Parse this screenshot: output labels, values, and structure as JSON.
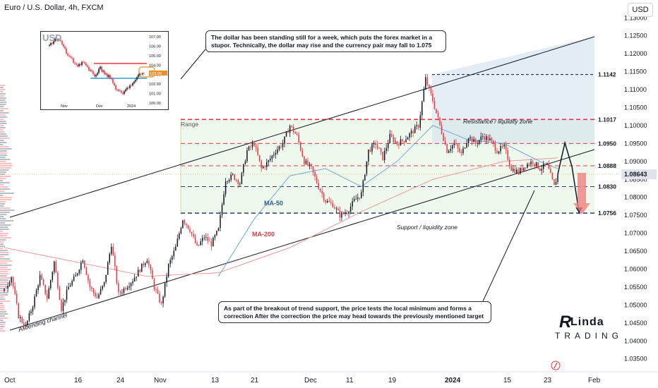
{
  "header": {
    "title": "Euro / U.S. Dollar, 4h, FXCM",
    "currency_button": "USD"
  },
  "notes": {
    "top": "The dollar has been standing still for a week, which puts the forex market in a stupor. Technically, the dollar may rise and the currency pair may fall to 1.075",
    "bottom": "As part of the breakout of trend support, the price tests the local minimum and forms a correction After the correction the price may head towards the previously mentioned target"
  },
  "inset": {
    "title": "USD",
    "y_ticks": [
      "107.00",
      "106.00",
      "105.00",
      "104.00",
      "103.00",
      "102.00",
      "101.00",
      "100.00"
    ],
    "x_ticks": [
      "Nov",
      "Dec",
      "2024"
    ],
    "current_label": "103.09"
  },
  "logo": {
    "mark": "R",
    "top": "Linda",
    "bottom": "TRADING"
  },
  "colors": {
    "up": "#131722",
    "down": "#ef3340",
    "ma50": "#6fa8dc",
    "ma200": "#e89a96",
    "channel": "#131722",
    "resistance": "#ef3340",
    "support": "#2c3e6b",
    "current_price_bg": "#e0e3eb"
  },
  "chart_data": {
    "type": "candlestick",
    "symbol": "EURUSD",
    "timeframe": "4h",
    "ylim": [
      1.032,
      1.133
    ],
    "y_ticks": [
      1.035,
      1.04,
      1.045,
      1.05,
      1.055,
      1.06,
      1.065,
      1.07,
      1.075,
      1.08,
      1.085,
      1.09,
      1.095,
      1.1,
      1.105,
      1.11,
      1.115,
      1.12,
      1.125,
      1.13
    ],
    "y_tick_labels": [
      "1.03500",
      "1.04000",
      "1.04500",
      "1.05000",
      "1.05500",
      "1.06000",
      "1.06500",
      "1.07000",
      "1.07500",
      "1.08000",
      "1.08500",
      "1.09000",
      "1.09500",
      "1.10000",
      "1.10500",
      "1.11000",
      "1.11500",
      "1.12000",
      "1.12500",
      "1.13000"
    ],
    "x_ticks": [
      "Oct",
      "16",
      "24",
      "Nov",
      "13",
      "21",
      "Dec",
      "11",
      "19",
      "2024",
      "15",
      "23",
      "Feb"
    ],
    "levels": [
      {
        "label": "1.1142",
        "value": 1.1142,
        "style": "resistance-dash"
      },
      {
        "label": "1.1017",
        "value": 1.1017,
        "style": "red-dash"
      },
      {
        "label": "1.0950",
        "value": 1.095,
        "style": "red-dash"
      },
      {
        "label": "1.0888",
        "value": 1.0888,
        "style": "red-dash"
      },
      {
        "label": "1.0830",
        "value": 1.083,
        "style": "navy-dash"
      },
      {
        "label": "1.0756",
        "value": 1.0756,
        "style": "navy-dash"
      }
    ],
    "current_price": "1.08643",
    "annotations": {
      "range": "Range",
      "resistance_zone": "Resistance / liquidity zone",
      "support_zone": "Support / liquidity zone",
      "ma50": "MA-50",
      "ma200": "MA-200",
      "channel": "Ascending channel"
    },
    "price_path": [
      [
        0,
        1.054
      ],
      [
        2,
        1.058
      ],
      [
        4,
        1.047
      ],
      [
        6,
        1.044
      ],
      [
        8,
        1.05
      ],
      [
        10,
        1.058
      ],
      [
        12,
        1.052
      ],
      [
        14,
        1.062
      ],
      [
        16,
        1.049
      ],
      [
        18,
        1.055
      ],
      [
        20,
        1.058
      ],
      [
        22,
        1.063
      ],
      [
        24,
        1.055
      ],
      [
        26,
        1.052
      ],
      [
        28,
        1.056
      ],
      [
        30,
        1.067
      ],
      [
        32,
        1.053
      ],
      [
        34,
        1.055
      ],
      [
        36,
        1.057
      ],
      [
        38,
        1.06
      ],
      [
        40,
        1.063
      ],
      [
        42,
        1.055
      ],
      [
        44,
        1.05
      ],
      [
        46,
        1.061
      ],
      [
        48,
        1.066
      ],
      [
        50,
        1.074
      ],
      [
        52,
        1.071
      ],
      [
        54,
        1.066
      ],
      [
        56,
        1.069
      ],
      [
        58,
        1.067
      ],
      [
        60,
        1.071
      ],
      [
        62,
        1.085
      ],
      [
        64,
        1.086
      ],
      [
        66,
        1.084
      ],
      [
        68,
        1.093
      ],
      [
        70,
        1.095
      ],
      [
        72,
        1.088
      ],
      [
        74,
        1.09
      ],
      [
        76,
        1.093
      ],
      [
        78,
        1.095
      ],
      [
        80,
        1.1
      ],
      [
        82,
        1.097
      ],
      [
        84,
        1.09
      ],
      [
        86,
        1.088
      ],
      [
        88,
        1.083
      ],
      [
        90,
        1.079
      ],
      [
        92,
        1.078
      ],
      [
        94,
        1.075
      ],
      [
        96,
        1.076
      ],
      [
        98,
        1.079
      ],
      [
        100,
        1.081
      ],
      [
        102,
        1.093
      ],
      [
        104,
        1.095
      ],
      [
        106,
        1.091
      ],
      [
        108,
        1.097
      ],
      [
        110,
        1.095
      ],
      [
        112,
        1.096
      ],
      [
        114,
        1.098
      ],
      [
        116,
        1.1
      ],
      [
        118,
        1.113
      ],
      [
        120,
        1.107
      ],
      [
        122,
        1.1
      ],
      [
        124,
        1.093
      ],
      [
        126,
        1.095
      ],
      [
        128,
        1.092
      ],
      [
        130,
        1.097
      ],
      [
        132,
        1.095
      ],
      [
        134,
        1.097
      ],
      [
        136,
        1.096
      ],
      [
        138,
        1.093
      ],
      [
        140,
        1.094
      ],
      [
        142,
        1.088
      ],
      [
        144,
        1.087
      ],
      [
        146,
        1.089
      ],
      [
        148,
        1.09
      ],
      [
        150,
        1.088
      ],
      [
        152,
        1.089
      ],
      [
        154,
        1.083
      ],
      [
        155,
        1.0864
      ]
    ],
    "projection": [
      [
        155,
        1.0864
      ],
      [
        157,
        1.0952
      ],
      [
        159,
        1.0885
      ],
      [
        161,
        1.0756
      ]
    ],
    "ma50_path": [
      [
        60,
        1.058
      ],
      [
        70,
        1.074
      ],
      [
        80,
        1.086
      ],
      [
        90,
        1.088
      ],
      [
        100,
        1.083
      ],
      [
        110,
        1.09
      ],
      [
        120,
        1.1
      ],
      [
        130,
        1.096
      ],
      [
        140,
        1.095
      ],
      [
        150,
        1.09
      ],
      [
        155,
        1.088
      ]
    ],
    "ma200_path": [
      [
        0,
        1.066
      ],
      [
        20,
        1.062
      ],
      [
        40,
        1.058
      ],
      [
        60,
        1.059
      ],
      [
        80,
        1.066
      ],
      [
        100,
        1.076
      ],
      [
        120,
        1.085
      ],
      [
        140,
        1.09
      ],
      [
        155,
        1.091
      ]
    ]
  }
}
